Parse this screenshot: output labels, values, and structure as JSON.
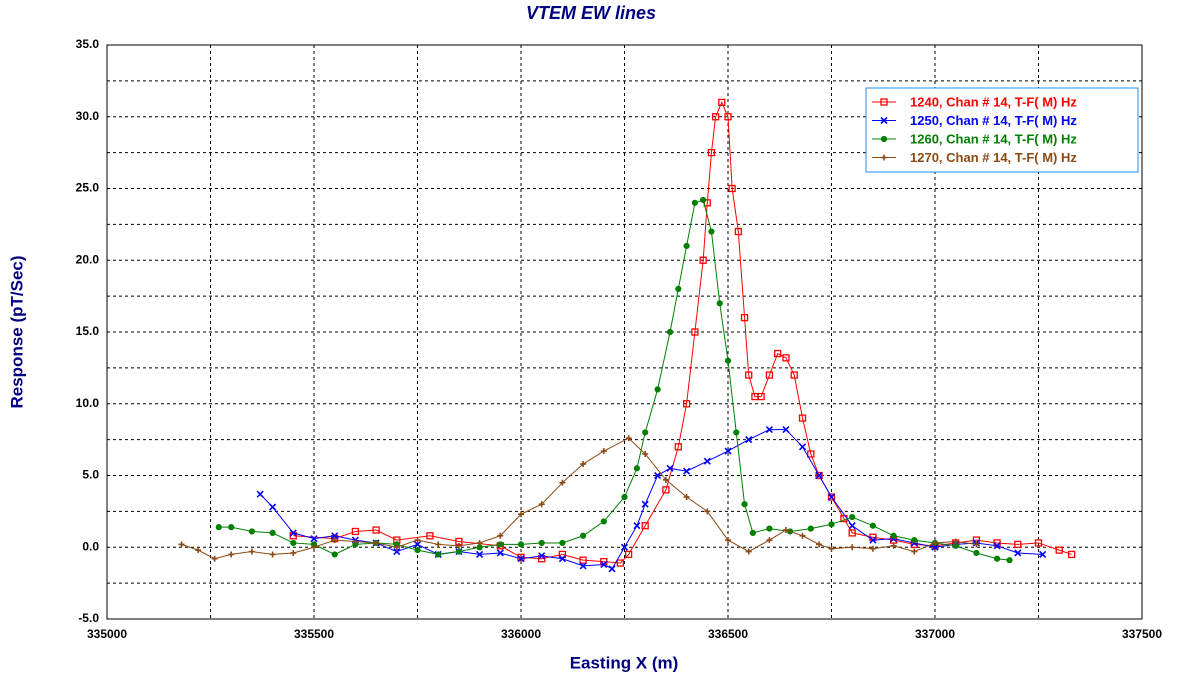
{
  "chart_data": {
    "type": "line",
    "title": "VTEM EW lines",
    "x_label": "Easting X (m)",
    "y_label": "Response (pT/Sec)",
    "xlim": [
      335000,
      337500
    ],
    "ylim": [
      -5,
      35
    ],
    "xticks": [
      335000,
      335500,
      336000,
      336500,
      337000,
      337500
    ],
    "yticks": [
      {
        "value": -5,
        "label": "-5.0"
      },
      {
        "value": 0,
        "label": "0.0"
      },
      {
        "value": 5,
        "label": "5.0"
      },
      {
        "value": 10,
        "label": "10.0"
      },
      {
        "value": 15,
        "label": "15.0"
      },
      {
        "value": 20,
        "label": "20.0"
      },
      {
        "value": 25,
        "label": "25.0"
      },
      {
        "value": 30,
        "label": "30.0"
      },
      {
        "value": 35,
        "label": "35.0"
      }
    ],
    "x_minor_grid": [
      335250,
      335750,
      336250,
      336750,
      337250
    ],
    "y_minor_grid": [
      -2.5,
      2.5,
      7.5,
      12.5,
      17.5,
      22.5,
      27.5,
      32.5
    ],
    "grid": true,
    "legend": "upper right",
    "series": [
      {
        "name": "1240, Chan # 14, T-F( M) Hz",
        "color": "#ff0000",
        "marker": "square",
        "x": [
          335450,
          335550,
          335600,
          335650,
          335700,
          335780,
          335850,
          335950,
          336000,
          336050,
          336100,
          336150,
          336200,
          336240,
          336260,
          336300,
          336350,
          336380,
          336400,
          336420,
          336440,
          336450,
          336460,
          336470,
          336485,
          336500,
          336510,
          336525,
          336540,
          336550,
          336565,
          336580,
          336600,
          336620,
          336640,
          336660,
          336680,
          336700,
          336720,
          336750,
          336780,
          336800,
          336850,
          336900,
          336950,
          337000,
          337050,
          337100,
          337150,
          337200,
          337250,
          337300,
          337330
        ],
        "values": [
          0.8,
          0.6,
          1.1,
          1.2,
          0.5,
          0.8,
          0.4,
          0.1,
          -0.7,
          -0.8,
          -0.5,
          -0.9,
          -1.0,
          -1.1,
          -0.5,
          1.5,
          4,
          7,
          10,
          15,
          20,
          24,
          27.5,
          30,
          31,
          30,
          25,
          22,
          16,
          12,
          10.5,
          10.5,
          12,
          13.5,
          13.2,
          12,
          9,
          6.5,
          5,
          3.5,
          2,
          1,
          0.7,
          0.5,
          0.2,
          0.1,
          0.3,
          0.5,
          0.3,
          0.2,
          0.3,
          -0.2,
          -0.5
        ]
      },
      {
        "name": "1250, Chan # 14, T-F( M) Hz",
        "color": "#0000ff",
        "marker": "cross",
        "x": [
          335370,
          335400,
          335450,
          335500,
          335550,
          335600,
          335650,
          335700,
          335750,
          335800,
          335850,
          335900,
          335950,
          336000,
          336050,
          336100,
          336150,
          336200,
          336220,
          336250,
          336280,
          336300,
          336330,
          336360,
          336400,
          336450,
          336500,
          336550,
          336600,
          336640,
          336680,
          336720,
          336750,
          336800,
          336850,
          336900,
          336950,
          337000,
          337050,
          337100,
          337150,
          337200,
          337260
        ],
        "values": [
          3.7,
          2.8,
          1.0,
          0.6,
          0.8,
          0.5,
          0.3,
          -0.3,
          0.2,
          -0.5,
          -0.3,
          -0.5,
          -0.4,
          -0.8,
          -0.6,
          -0.8,
          -1.3,
          -1.2,
          -1.5,
          0,
          1.5,
          3,
          5,
          5.5,
          5.3,
          6,
          6.7,
          7.5,
          8.2,
          8.2,
          7,
          5,
          3.5,
          1.5,
          0.5,
          0.6,
          0.3,
          0.0,
          0.2,
          0.3,
          0.1,
          -0.4,
          -0.5
        ]
      },
      {
        "name": "1260, Chan # 14, T-F( M) Hz",
        "color": "#008000",
        "marker": "circle",
        "x": [
          335270,
          335300,
          335350,
          335400,
          335450,
          335500,
          335550,
          335600,
          335650,
          335700,
          335750,
          335800,
          335850,
          335900,
          335950,
          336000,
          336050,
          336100,
          336150,
          336200,
          336250,
          336280,
          336300,
          336330,
          336360,
          336380,
          336400,
          336420,
          336440,
          336460,
          336480,
          336500,
          336520,
          336540,
          336560,
          336600,
          336650,
          336700,
          336750,
          336800,
          336850,
          336900,
          336950,
          337000,
          337050,
          337100,
          337150,
          337180
        ],
        "values": [
          1.4,
          1.4,
          1.1,
          1.0,
          0.3,
          0.2,
          -0.5,
          0.2,
          0.3,
          0.2,
          -0.2,
          -0.5,
          -0.3,
          0,
          0.2,
          0.2,
          0.3,
          0.3,
          0.8,
          1.8,
          3.5,
          5.5,
          8,
          11,
          15,
          18,
          21,
          24,
          24.2,
          22,
          17,
          13,
          8,
          3,
          1,
          1.3,
          1.1,
          1.3,
          1.6,
          2.1,
          1.5,
          0.8,
          0.5,
          0.3,
          0.1,
          -0.4,
          -0.8,
          -0.9
        ]
      },
      {
        "name": "1270, Chan # 14, T-F( M) Hz",
        "color": "#8b4a16",
        "marker": "plus",
        "x": [
          335180,
          335220,
          335260,
          335300,
          335350,
          335400,
          335450,
          335500,
          335550,
          335600,
          335650,
          335700,
          335750,
          335800,
          335850,
          335900,
          335950,
          336000,
          336050,
          336100,
          336150,
          336200,
          336260,
          336300,
          336350,
          336400,
          336450,
          336500,
          336550,
          336600,
          336640,
          336680,
          336720,
          336750,
          336800,
          336850,
          336900,
          336950,
          337000,
          337050,
          337100
        ],
        "values": [
          0.2,
          -0.2,
          -0.8,
          -0.5,
          -0.3,
          -0.5,
          -0.4,
          0,
          0.5,
          0.4,
          0.3,
          0.0,
          0.5,
          0.2,
          0.1,
          0.3,
          0.8,
          2.3,
          3,
          4.5,
          5.8,
          6.7,
          7.6,
          6.5,
          4.7,
          3.5,
          2.5,
          0.5,
          -0.3,
          0.5,
          1.2,
          0.8,
          0.2,
          -0.1,
          0.0,
          -0.1,
          0.1,
          -0.3,
          0.3,
          0.4,
          0.2
        ]
      }
    ]
  }
}
